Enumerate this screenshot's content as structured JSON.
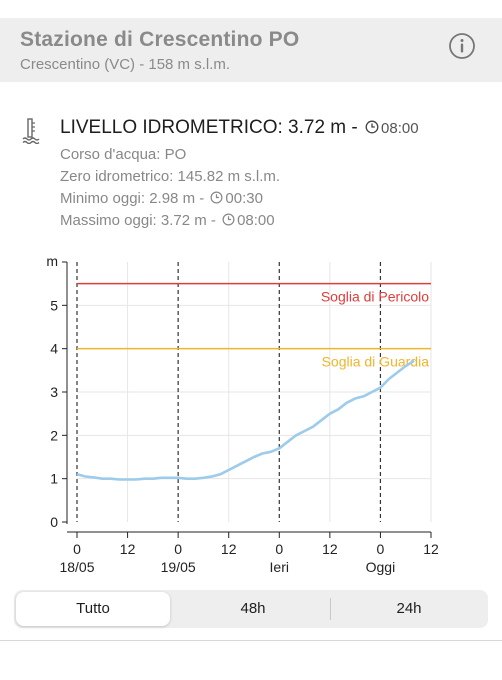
{
  "station": {
    "title": "Stazione di Crescentino PO",
    "subtitle": "Crescentino (VC) - 158 m s.l.m."
  },
  "level": {
    "label": "LIVELLO IDROMETRICO: 3.72 m - ",
    "time": "08:00",
    "details": {
      "river": "Corso d'acqua: PO",
      "zero": "Zero idrometrico: 145.82 m s.l.m.",
      "min_label": "Minimo oggi: 2.98 m - ",
      "min_time": "00:30",
      "max_label": "Massimo oggi: 3.72 m - ",
      "max_time": "08:00"
    }
  },
  "chart_data": {
    "type": "line",
    "ylabel": "m",
    "ylim": [
      0,
      6
    ],
    "yticks": [
      0,
      1,
      2,
      3,
      4,
      5
    ],
    "xlim": [
      0,
      84
    ],
    "xticks": [
      {
        "x": 0,
        "label": "0",
        "sub": "18/05"
      },
      {
        "x": 12,
        "label": "12",
        "sub": ""
      },
      {
        "x": 24,
        "label": "0",
        "sub": "19/05"
      },
      {
        "x": 36,
        "label": "12",
        "sub": ""
      },
      {
        "x": 48,
        "label": "0",
        "sub": "Ieri"
      },
      {
        "x": 60,
        "label": "12",
        "sub": ""
      },
      {
        "x": 72,
        "label": "0",
        "sub": "Oggi"
      },
      {
        "x": 84,
        "label": "12",
        "sub": ""
      }
    ],
    "day_lines": [
      0,
      24,
      48,
      72
    ],
    "thresholds": [
      {
        "name": "Soglia di Pericolo",
        "value": 5.5,
        "color": "#e23b3b"
      },
      {
        "name": "Soglia di Guardia",
        "value": 4.0,
        "color": "#f2b42a"
      }
    ],
    "series": [
      {
        "color": "#9ccbec",
        "points": [
          [
            0,
            1.1
          ],
          [
            2,
            1.05
          ],
          [
            4,
            1.03
          ],
          [
            6,
            1.0
          ],
          [
            8,
            1.0
          ],
          [
            10,
            0.98
          ],
          [
            12,
            0.98
          ],
          [
            14,
            0.98
          ],
          [
            16,
            1.0
          ],
          [
            18,
            1.0
          ],
          [
            20,
            1.02
          ],
          [
            22,
            1.02
          ],
          [
            24,
            1.02
          ],
          [
            26,
            1.0
          ],
          [
            28,
            1.0
          ],
          [
            30,
            1.02
          ],
          [
            32,
            1.05
          ],
          [
            34,
            1.1
          ],
          [
            36,
            1.2
          ],
          [
            38,
            1.3
          ],
          [
            40,
            1.4
          ],
          [
            42,
            1.5
          ],
          [
            44,
            1.58
          ],
          [
            46,
            1.62
          ],
          [
            48,
            1.7
          ],
          [
            50,
            1.85
          ],
          [
            52,
            2.0
          ],
          [
            54,
            2.1
          ],
          [
            56,
            2.2
          ],
          [
            58,
            2.35
          ],
          [
            60,
            2.5
          ],
          [
            62,
            2.6
          ],
          [
            64,
            2.75
          ],
          [
            66,
            2.85
          ],
          [
            68,
            2.9
          ],
          [
            70,
            3.0
          ],
          [
            72,
            3.1
          ],
          [
            74,
            3.3
          ],
          [
            76,
            3.45
          ],
          [
            78,
            3.6
          ],
          [
            80,
            3.72
          ]
        ]
      }
    ]
  },
  "tabs": [
    {
      "label": "Tutto",
      "active": true
    },
    {
      "label": "48h",
      "active": false
    },
    {
      "label": "24h",
      "active": false
    }
  ]
}
